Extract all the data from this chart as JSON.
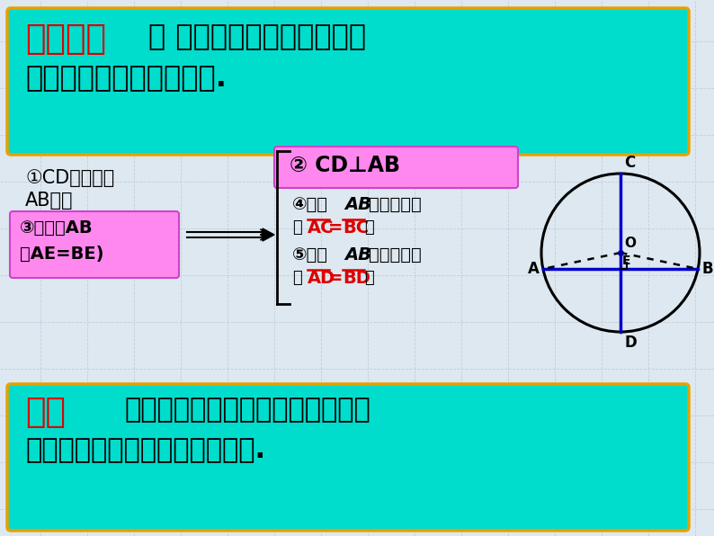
{
  "bg_color": "#dde8f0",
  "title_box_color": "#00ddcc",
  "title_box_border": "#e8a000",
  "title_text_red": "垂径定理",
  "title_colon": "：",
  "title_rest_line1": " 垂直于弦的直径平分弦，",
  "title_rest_line2": "并且平分弦所对的两条弧.",
  "bottom_box_color": "#00ddcc",
  "bottom_box_border": "#e8a000",
  "bottom_label_red": "推论",
  "condition_text_line1": "①CD是直径，",
  "condition_text_line2": "AB是弦",
  "cd_perp_text": "② CD⊥AB",
  "result4_text1": "④平分",
  "result4_text2": "AB",
  "result4_text3": "所对的优弧",
  "result4_sub_open": "（",
  "result4_sub_red": "AC=BC",
  "result4_sub_close": "）",
  "result5_text1": "⑤平分",
  "result5_text2": "AB",
  "result5_text3": "所对的劣弧",
  "result5_sub_open": "（",
  "result5_sub_red": "AD=BD",
  "result5_sub_close": "）",
  "left_box_line1": "③平分弦AB",
  "left_box_line2": "（AE=BE)",
  "circle_color": "#000000",
  "line_color": "#0000cc",
  "grid_color": "#b0b8c8"
}
